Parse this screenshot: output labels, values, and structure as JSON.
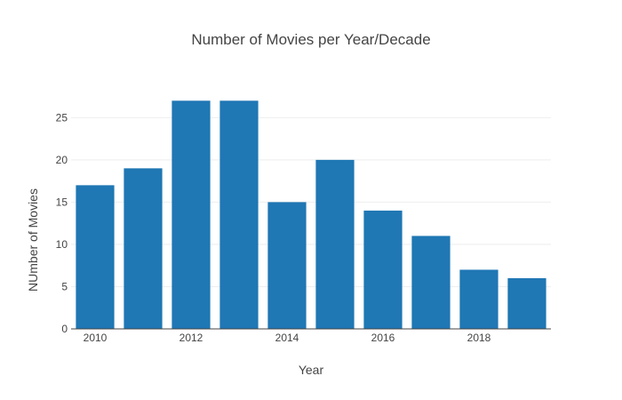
{
  "chart_data": {
    "type": "bar",
    "title": "Number of Movies per Year/Decade",
    "xlabel": "Year",
    "ylabel": "NUmber of Movies",
    "x": [
      2010,
      2011,
      2012,
      2013,
      2014,
      2015,
      2016,
      2017,
      2018,
      2019
    ],
    "values": [
      17,
      19,
      27,
      27,
      15,
      20,
      14,
      11,
      7,
      6
    ],
    "xticks": [
      2010,
      2012,
      2014,
      2016,
      2018
    ],
    "xtick_labels": [
      "2010",
      "2012",
      "2014",
      "2016",
      "2018"
    ],
    "yticks": [
      0,
      5,
      10,
      15,
      20,
      25
    ],
    "ytick_labels": [
      "0",
      "5",
      "10",
      "15",
      "20",
      "25"
    ],
    "xlim": [
      2009.5,
      2019.5
    ],
    "ylim": [
      0,
      28.4
    ],
    "grid": true,
    "legend": false,
    "bar_color": "#1f77b4"
  }
}
